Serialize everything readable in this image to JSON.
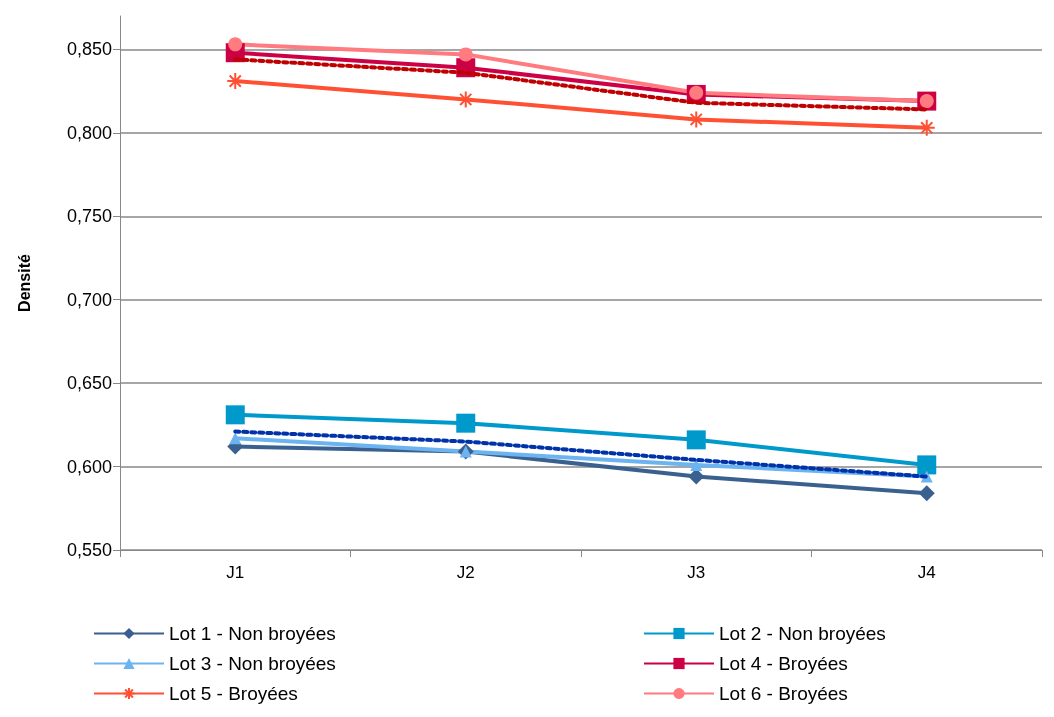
{
  "chart_data": {
    "type": "line",
    "ylabel": "Densité",
    "categories": [
      "J1",
      "J2",
      "J3",
      "J4"
    ],
    "series": [
      {
        "name": "Lot 1 - Non broyées",
        "color": "#3a6090",
        "marker": "diamond",
        "values": [
          0.612,
          0.609,
          0.594,
          0.584
        ]
      },
      {
        "name": "Lot 2 - Non broyées",
        "color": "#0099cc",
        "marker": "square",
        "values": [
          0.631,
          0.626,
          0.616,
          0.601
        ]
      },
      {
        "name": "Lot 3 - Non broyées",
        "color": "#6cb4f0",
        "marker": "triangle",
        "values": [
          0.617,
          0.609,
          0.601,
          0.594
        ]
      },
      {
        "name": "Lot 4 - Broyées",
        "color": "#cc0044",
        "marker": "square",
        "values": [
          0.848,
          0.839,
          0.823,
          0.819
        ]
      },
      {
        "name": "Lot 5 - Broyées",
        "color": "#ff5033",
        "marker": "cross",
        "values": [
          0.831,
          0.82,
          0.808,
          0.803
        ]
      },
      {
        "name": "Lot 6 - Broyées",
        "color": "#ff7b80",
        "marker": "circle",
        "values": [
          0.853,
          0.847,
          0.824,
          0.819
        ]
      },
      {
        "color": "#0033aa",
        "marker": "none",
        "line_style": "dotted",
        "values": [
          0.621,
          0.615,
          0.604,
          0.594
        ]
      },
      {
        "color": "#c00000",
        "marker": "none",
        "line_style": "dotted",
        "values": [
          0.844,
          0.836,
          0.818,
          0.814
        ]
      }
    ],
    "ylim": [
      0.55,
      0.87
    ],
    "yticks": [
      {
        "value": 0.55,
        "label": "0,550"
      },
      {
        "value": 0.6,
        "label": "0,600"
      },
      {
        "value": 0.65,
        "label": "0,650"
      },
      {
        "value": 0.7,
        "label": "0,700"
      },
      {
        "value": 0.75,
        "label": "0,750"
      },
      {
        "value": 0.8,
        "label": "0,800"
      },
      {
        "value": 0.85,
        "label": "0,850"
      }
    ],
    "grid": "y",
    "legend": "bottom",
    "line_style": "solid"
  }
}
